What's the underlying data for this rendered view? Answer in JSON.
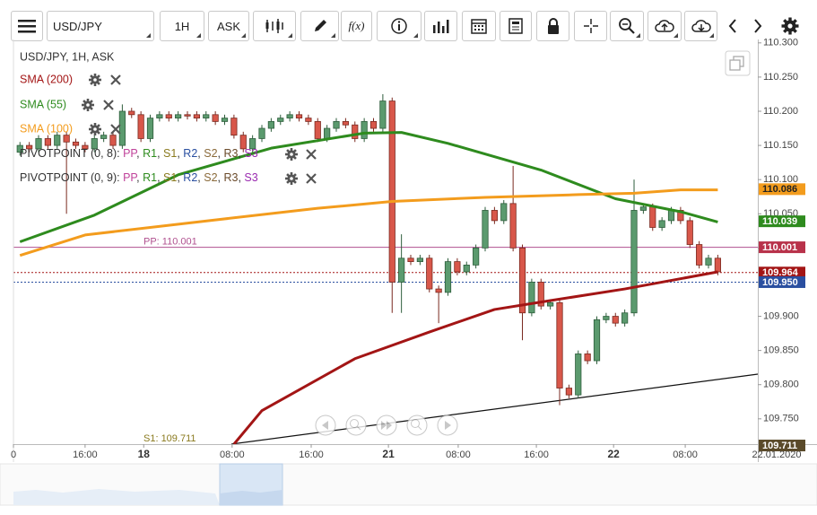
{
  "toolbar": {
    "symbol": "USD/JPY",
    "interval": "1H",
    "price_type": "ASK",
    "function": "f(x)"
  },
  "legend": {
    "instrument": "USD/JPY, 1H, ASK",
    "pivots": [
      {
        "name": "PIVOTPOINT (0, 8)"
      },
      {
        "name": "PIVOTPOINT (0, 9)"
      }
    ],
    "pivot_prefix": ": ",
    "pivot_separator": ", ",
    "pivot_levels": [
      {
        "name": "PP",
        "color": "#c0429a"
      },
      {
        "name": "R1",
        "color": "#2e8b1e"
      },
      {
        "name": "S1",
        "color": "#8a7a1e"
      },
      {
        "name": "R2",
        "color": "#2a4fa0"
      },
      {
        "name": "S2",
        "color": "#8a6a3a"
      },
      {
        "name": "R3",
        "color": "#6a4a2a"
      },
      {
        "name": "S3",
        "color": "#9a2ab0"
      }
    ]
  },
  "chart_data": {
    "type": "candlestick",
    "date_label": "22.01.2020",
    "xlim": [
      -0.7,
      79.3
    ],
    "ylim": [
      109.713,
      110.305
    ],
    "yticks": [
      {
        "value": 109.75,
        "label": "109.750"
      },
      {
        "value": 109.8,
        "label": "109.800"
      },
      {
        "value": 109.85,
        "label": "109.850"
      },
      {
        "value": 109.9,
        "label": "109.900"
      },
      {
        "value": 109.95,
        "label": "109.950"
      },
      {
        "value": 110.0,
        "label": "110.000"
      },
      {
        "value": 110.05,
        "label": "110.050"
      },
      {
        "value": 110.1,
        "label": "110.100"
      },
      {
        "value": 110.15,
        "label": "110.150"
      },
      {
        "value": 110.2,
        "label": "110.200"
      },
      {
        "value": 110.25,
        "label": "110.250"
      },
      {
        "value": 110.3,
        "label": "110.300"
      }
    ],
    "xticks": [
      {
        "value": -0.7,
        "label": "0"
      },
      {
        "value": 7,
        "label": "16:00"
      },
      {
        "value": 13.3,
        "label": "18"
      },
      {
        "value": 22.8,
        "label": "08:00"
      },
      {
        "value": 31.3,
        "label": "16:00"
      },
      {
        "value": 39.6,
        "label": "21"
      },
      {
        "value": 47.1,
        "label": "08:00"
      },
      {
        "value": 55.5,
        "label": "16:00"
      },
      {
        "value": 63.8,
        "label": "22"
      },
      {
        "value": 71.5,
        "label": "08:00"
      }
    ],
    "grid": false,
    "up_color": "#5b9a6e",
    "up_border": "#2e5e3c",
    "down_color": "#d8574a",
    "down_border": "#7a2a20",
    "open": [
      110.14,
      110.15,
      110.145,
      110.16,
      110.15,
      110.165,
      110.155,
      110.15,
      110.145,
      110.16,
      110.165,
      110.15,
      110.2,
      110.195,
      110.16,
      110.19,
      110.195,
      110.19,
      110.195,
      110.195,
      110.19,
      110.195,
      110.185,
      110.19,
      110.165,
      110.145,
      110.16,
      110.175,
      110.185,
      110.19,
      110.195,
      110.19,
      110.185,
      110.16,
      110.175,
      110.185,
      110.18,
      110.16,
      110.185,
      110.175,
      110.215,
      109.95,
      109.985,
      109.98,
      109.985,
      109.94,
      109.935,
      109.98,
      109.965,
      109.975,
      110.0,
      110.055,
      110.04,
      110.065,
      110.0,
      109.905,
      109.95,
      109.915,
      109.92,
      109.795,
      109.785,
      109.845,
      109.835,
      109.895,
      109.9,
      109.89,
      109.905,
      110.055,
      110.06,
      110.03,
      110.04,
      110.055,
      110.04,
      110.005,
      109.975,
      109.985
    ],
    "high": [
      110.155,
      110.155,
      110.165,
      110.165,
      110.17,
      110.17,
      110.16,
      110.155,
      110.165,
      110.17,
      110.17,
      110.21,
      110.205,
      110.2,
      110.195,
      110.2,
      110.2,
      110.2,
      110.2,
      110.2,
      110.2,
      110.2,
      110.195,
      110.195,
      110.17,
      110.165,
      110.18,
      110.19,
      110.195,
      110.2,
      110.2,
      110.195,
      110.19,
      110.18,
      110.19,
      110.19,
      110.185,
      110.19,
      110.19,
      110.225,
      110.22,
      110.02,
      109.99,
      109.99,
      109.99,
      109.945,
      109.985,
      109.985,
      109.98,
      110.005,
      110.06,
      110.06,
      110.07,
      110.12,
      110.005,
      109.955,
      109.955,
      109.925,
      109.925,
      109.8,
      109.85,
      109.85,
      109.9,
      109.905,
      109.905,
      109.91,
      110.1,
      110.065,
      110.065,
      110.045,
      110.06,
      110.06,
      110.045,
      110.01,
      109.99,
      109.99
    ],
    "low": [
      110.135,
      110.14,
      110.14,
      110.145,
      110.145,
      110.05,
      110.145,
      110.14,
      110.14,
      110.155,
      110.145,
      110.145,
      110.19,
      110.155,
      110.155,
      110.185,
      110.185,
      110.185,
      110.188,
      110.185,
      110.185,
      110.18,
      110.18,
      110.16,
      110.14,
      110.14,
      110.155,
      110.17,
      110.18,
      110.185,
      110.185,
      110.18,
      110.155,
      110.155,
      110.17,
      110.175,
      110.155,
      110.155,
      110.17,
      110.17,
      109.905,
      109.905,
      109.975,
      109.975,
      109.935,
      109.89,
      109.93,
      109.96,
      109.96,
      109.97,
      109.995,
      110.035,
      110.035,
      109.995,
      109.865,
      109.9,
      109.91,
      109.91,
      109.77,
      109.78,
      109.78,
      109.83,
      109.83,
      109.89,
      109.885,
      109.885,
      109.9,
      110.05,
      110.025,
      110.025,
      110.035,
      110.035,
      110.0,
      109.97,
      109.97,
      109.96
    ],
    "close": [
      110.15,
      110.145,
      110.16,
      110.15,
      110.165,
      110.155,
      110.15,
      110.145,
      110.16,
      110.165,
      110.15,
      110.2,
      110.195,
      110.16,
      110.19,
      110.195,
      110.19,
      110.195,
      110.193,
      110.19,
      110.195,
      110.185,
      110.19,
      110.165,
      110.145,
      110.16,
      110.175,
      110.185,
      110.19,
      110.195,
      110.19,
      110.185,
      110.16,
      110.175,
      110.185,
      110.18,
      110.16,
      110.185,
      110.175,
      110.215,
      109.95,
      109.985,
      109.98,
      109.985,
      109.94,
      109.935,
      109.98,
      109.965,
      109.975,
      110.0,
      110.055,
      110.04,
      110.065,
      110.0,
      109.905,
      109.95,
      109.915,
      109.92,
      109.795,
      109.785,
      109.845,
      109.835,
      109.895,
      109.9,
      109.89,
      109.905,
      110.055,
      110.06,
      110.03,
      110.04,
      110.055,
      110.04,
      110.005,
      109.975,
      109.985,
      109.965
    ],
    "series": [
      {
        "name": "SMA (200)",
        "color": "#a31515",
        "width": 3,
        "x": [
          23,
          26,
          36,
          44,
          51,
          57,
          65,
          75
        ],
        "values": [
          109.713,
          109.762,
          109.838,
          109.877,
          109.91,
          109.923,
          109.94,
          109.965
        ]
      },
      {
        "name": "SMA (55)",
        "color": "#2e8b1e",
        "width": 3,
        "x": [
          0,
          8,
          17,
          27,
          37,
          41,
          46,
          56,
          64,
          71,
          75
        ],
        "values": [
          110.009,
          110.048,
          110.107,
          110.146,
          110.168,
          110.169,
          110.153,
          110.114,
          110.072,
          110.053,
          110.038
        ]
      },
      {
        "name": "SMA (100)",
        "color": "#f39c1d",
        "width": 3,
        "x": [
          0,
          7,
          21,
          32,
          40,
          50,
          60,
          66,
          71,
          75
        ],
        "values": [
          109.989,
          110.019,
          110.041,
          110.058,
          110.068,
          110.074,
          110.078,
          110.08,
          110.085,
          110.085
        ]
      }
    ],
    "levels": [
      {
        "label": "PP: 110.001",
        "value": 110.001,
        "color": "#b0508f"
      },
      {
        "label": "S1: 109.711",
        "value": 109.711,
        "color": "#8a7a1e"
      }
    ],
    "price_markers": [
      {
        "value": 110.086,
        "label": "110.086",
        "color": "#f39c1d",
        "text_color": "#222"
      },
      {
        "value": 110.039,
        "label": "110.039",
        "color": "#2e8b1e",
        "text_color": "#fff"
      },
      {
        "value": 110.001,
        "label": "110.001",
        "color": "#b8324a",
        "text_color": "#fff"
      },
      {
        "value": 109.964,
        "label": "109.964",
        "color": "#a31515",
        "text_color": "#fff"
      },
      {
        "value": 109.95,
        "label": "109.950",
        "color": "#2a4fa0",
        "text_color": "#fff"
      },
      {
        "value": 109.711,
        "label": "109.711",
        "color": "#5a4a2a",
        "text_color": "#fff"
      }
    ],
    "current_lines": [
      {
        "value": 109.95,
        "color": "#2a4fa0"
      },
      {
        "value": 109.964,
        "color": "#a31515"
      }
    ]
  }
}
